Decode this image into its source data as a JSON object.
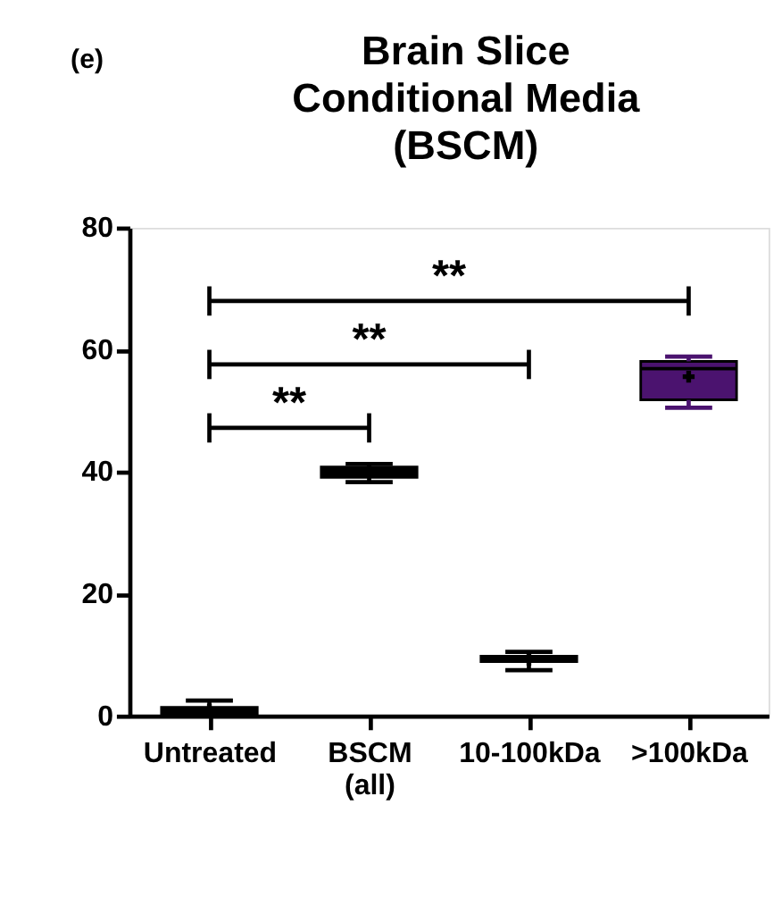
{
  "chart_data": {
    "type": "box",
    "title": "Brain Slice Conditional Media (BSCM)",
    "categories": [
      "Untreated",
      "BSCM (all)",
      "10-100kDa",
      ">100kDa"
    ],
    "boxes": [
      {
        "low": 0,
        "q1": 0.3,
        "median": 1,
        "q3": 1.4,
        "high": 2.5,
        "mean": 1
      },
      {
        "low": 38.3,
        "q1": 39.1,
        "median": 40,
        "q3": 40.8,
        "high": 41.3,
        "mean": 40
      },
      {
        "low": 7.5,
        "q1": 8.9,
        "median": 9.3,
        "q3": 9.8,
        "high": 10.5,
        "mean": 9.2
      },
      {
        "low": 50.5,
        "q1": 51.8,
        "median": 56.9,
        "q3": 58.1,
        "high": 58.9,
        "mean": 55.6
      }
    ],
    "colors": [
      "#000000",
      "#000000",
      "#000000",
      "#4b136f"
    ],
    "ylim": [
      0,
      80
    ],
    "yticks": [
      0,
      20,
      40,
      60,
      80
    ],
    "grid": false,
    "annotations": [
      "(e)",
      "**",
      "**",
      "**"
    ]
  }
}
